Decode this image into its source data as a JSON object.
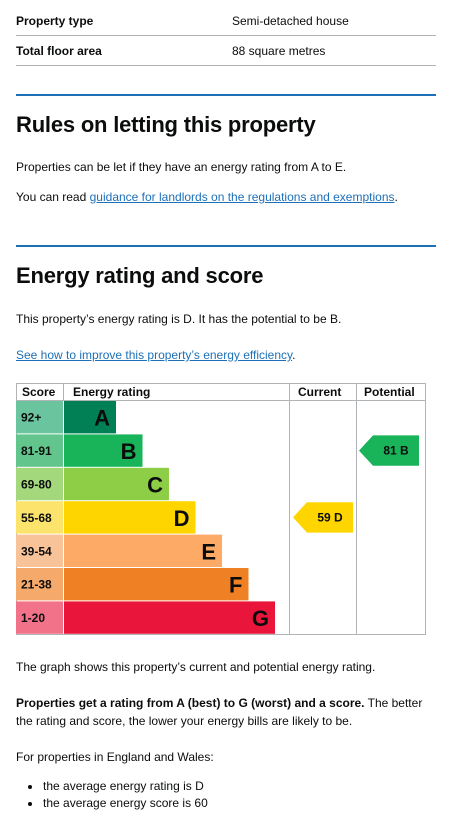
{
  "summary": {
    "rows": [
      {
        "label": "Property type",
        "value": "Semi-detached house"
      },
      {
        "label": "Total floor area",
        "value": "88 square metres"
      }
    ]
  },
  "letting": {
    "heading": "Rules on letting this property",
    "para1": "Properties can be let if they have an energy rating from A to E.",
    "para2_prefix": "You can read ",
    "para2_link": "guidance for landlords on the regulations and exemptions",
    "para2_suffix": "."
  },
  "energy": {
    "heading": "Energy rating and score",
    "para1": "This property’s energy rating is D. It has the potential to be B.",
    "improve_link": "See how to improve this property’s energy efficiency",
    "improve_suffix": "."
  },
  "chart_data": {
    "type": "table",
    "headers": {
      "score": "Score",
      "rating": "Energy rating",
      "current": "Current",
      "potential": "Potential"
    },
    "bands": [
      {
        "range": "92+",
        "letter": "A",
        "color": "#008054"
      },
      {
        "range": "81-91",
        "letter": "B",
        "color": "#19b459"
      },
      {
        "range": "69-80",
        "letter": "C",
        "color": "#8dce46"
      },
      {
        "range": "55-68",
        "letter": "D",
        "color": "#ffd500"
      },
      {
        "range": "39-54",
        "letter": "E",
        "color": "#fcaa65"
      },
      {
        "range": "21-38",
        "letter": "F",
        "color": "#ef8023"
      },
      {
        "range": "1-20",
        "letter": "G",
        "color": "#e9153b"
      }
    ],
    "current": {
      "score": 59,
      "letter": "D",
      "label": "59 D"
    },
    "potential": {
      "score": 81,
      "letter": "B",
      "label": "81 B"
    }
  },
  "after_chart": {
    "para1": "The graph shows this property’s current and potential energy rating.",
    "para2_bold": "Properties get a rating from A (best) to G (worst) and a score.",
    "para2_rest": " The better the rating and score, the lower your energy bills are likely to be.",
    "para3": "For properties in England and Wales:",
    "bullets": [
      "the average energy rating is D",
      "the average energy score is 60"
    ]
  }
}
